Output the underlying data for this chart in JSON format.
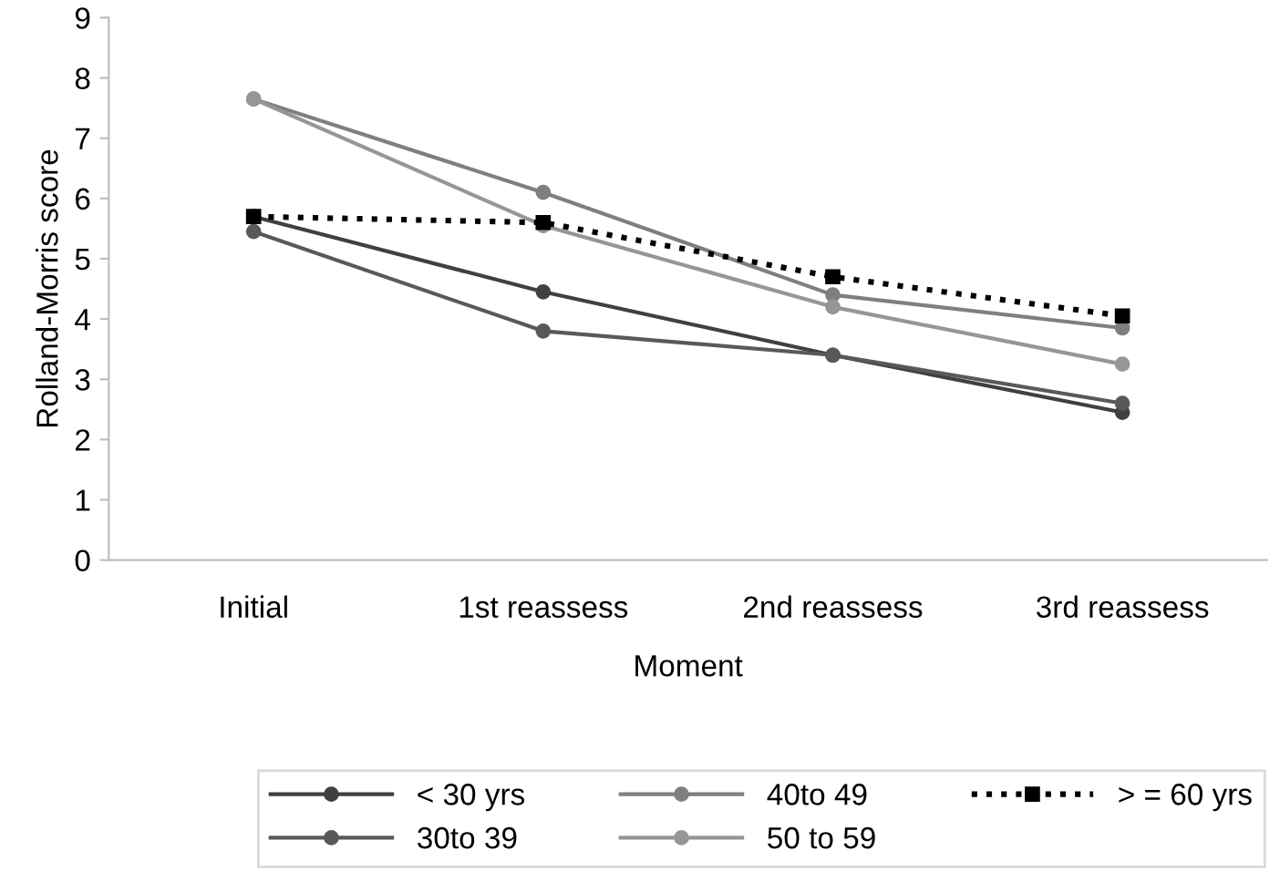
{
  "chart_data": {
    "type": "line",
    "xlabel": "Moment",
    "ylabel": "Rolland-Morris score",
    "categories": [
      "Initial",
      "1st reassess",
      "2nd reassess",
      "3rd reassess"
    ],
    "series": [
      {
        "name": "< 30 yrs",
        "color": "#404040",
        "values": [
          5.7,
          4.45,
          3.4,
          2.45
        ],
        "marker": "circle",
        "line_style": "solid"
      },
      {
        "name": "30to 39",
        "color": "#595959",
        "values": [
          5.45,
          3.8,
          3.4,
          2.6
        ],
        "marker": "circle",
        "line_style": "solid"
      },
      {
        "name": "40to 49",
        "color": "#7f7f7f",
        "values": [
          7.65,
          6.1,
          4.4,
          3.85
        ],
        "marker": "circle",
        "line_style": "solid"
      },
      {
        "name": "50 to 59",
        "color": "#969696",
        "values": [
          7.65,
          5.55,
          4.2,
          3.25
        ],
        "marker": "circle",
        "line_style": "solid"
      },
      {
        "name": "> = 60 yrs",
        "color": "#000000",
        "values": [
          5.7,
          5.6,
          4.7,
          4.05
        ],
        "marker": "square",
        "line_style": "dotted"
      }
    ],
    "ylim": [
      0,
      9
    ],
    "yticks": [
      0,
      1,
      2,
      3,
      4,
      5,
      6,
      7,
      8,
      9
    ],
    "grid": false,
    "legend": "bottom"
  }
}
